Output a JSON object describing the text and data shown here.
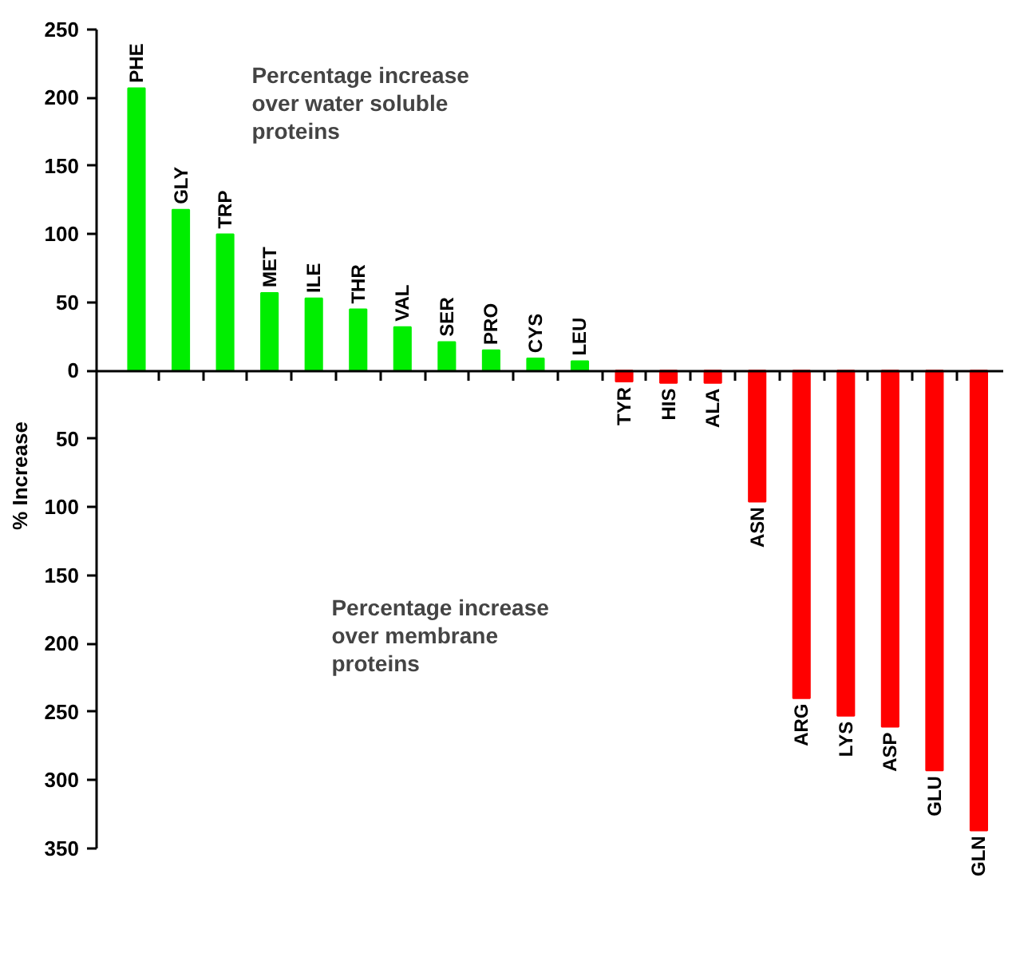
{
  "chart_data": {
    "type": "bar",
    "ylabel": "% Increase",
    "categories": [
      "PHE",
      "GLY",
      "TRP",
      "MET",
      "ILE",
      "THR",
      "VAL",
      "SER",
      "PRO",
      "CYS",
      "LEU",
      "TYR",
      "HIS",
      "ALA",
      "ASN",
      "ARG",
      "LYS",
      "ASP",
      "GLU",
      "GLN"
    ],
    "values": [
      207,
      118,
      100,
      57,
      53,
      45,
      32,
      21,
      15,
      9,
      7,
      -8,
      -9,
      -9,
      -96,
      -240,
      -253,
      -261,
      -293,
      -337
    ],
    "colors": [
      "#00ee00",
      "#00ee00",
      "#00ee00",
      "#00ee00",
      "#00ee00",
      "#00ee00",
      "#00ee00",
      "#00ee00",
      "#00ee00",
      "#00ee00",
      "#00ee00",
      "#ff0000",
      "#ff0000",
      "#ff0000",
      "#ff0000",
      "#ff0000",
      "#ff0000",
      "#ff0000",
      "#ff0000",
      "#ff0000"
    ],
    "ylim": [
      -350,
      250
    ],
    "yticks": [
      {
        "value": -350,
        "label": "350"
      },
      {
        "value": -300,
        "label": "300"
      },
      {
        "value": -250,
        "label": "250"
      },
      {
        "value": -200,
        "label": "200"
      },
      {
        "value": -150,
        "label": "150"
      },
      {
        "value": -100,
        "label": "100"
      },
      {
        "value": -50,
        "label": "50"
      },
      0,
      50,
      100,
      150,
      200,
      250
    ],
    "annotations": [
      "Percentage increase\nover water soluble\nproteins",
      "Percentage increase\nover membrane\nproteins"
    ],
    "grid": false
  }
}
